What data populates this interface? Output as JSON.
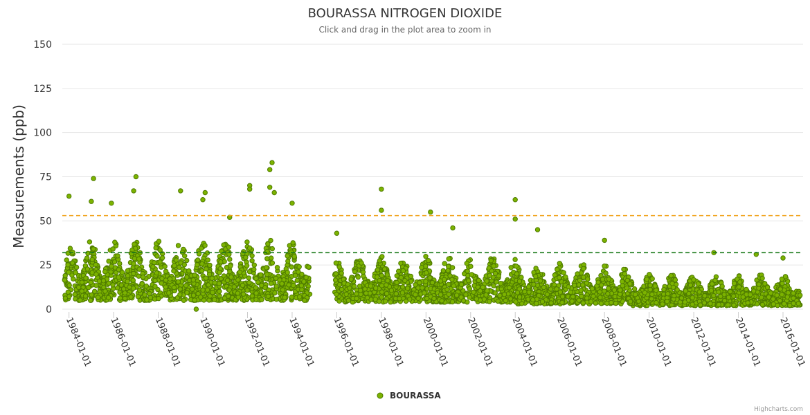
{
  "chart_data": {
    "type": "scatter",
    "title": "BOURASSA NITROGEN DIOXIDE",
    "subtitle": "Click and drag in the plot area to zoom in",
    "ylabel": "Measurements (ppb)",
    "xlabel": "",
    "ylim": [
      0,
      150
    ],
    "yticks": [
      0,
      25,
      50,
      75,
      100,
      125,
      150
    ],
    "xlim": [
      1983.7,
      2016.9
    ],
    "xticks": [
      {
        "value": 1984,
        "label": "1984-01-01"
      },
      {
        "value": 1986,
        "label": "1986-01-01"
      },
      {
        "value": 1988,
        "label": "1988-01-01"
      },
      {
        "value": 1990,
        "label": "1990-01-01"
      },
      {
        "value": 1992,
        "label": "1992-01-01"
      },
      {
        "value": 1994,
        "label": "1994-01-01"
      },
      {
        "value": 1996,
        "label": "1996-01-01"
      },
      {
        "value": 1998,
        "label": "1998-01-01"
      },
      {
        "value": 2000,
        "label": "2000-01-01"
      },
      {
        "value": 2002,
        "label": "2002-01-01"
      },
      {
        "value": 2004,
        "label": "2004-01-01"
      },
      {
        "value": 2006,
        "label": "2006-01-01"
      },
      {
        "value": 2008,
        "label": "2008-01-01"
      },
      {
        "value": 2010,
        "label": "2010-01-01"
      },
      {
        "value": 2012,
        "label": "2012-01-01"
      },
      {
        "value": 2014,
        "label": "2014-01-01"
      },
      {
        "value": 2016,
        "label": "2016-01-01"
      }
    ],
    "reference_lines": [
      {
        "value": 53,
        "color": "#f0a31c",
        "style": "dashed"
      },
      {
        "value": 32,
        "color": "#1a7a1a",
        "style": "dashed"
      }
    ],
    "legend": {
      "position": "bottom-center"
    },
    "series": [
      {
        "name": "BOURASSA",
        "color": "#7cb300",
        "data_gap": [
          1994.8,
          1995.9
        ],
        "typical_range_by_period": [
          {
            "x": [
              1983.8,
              1994.8
            ],
            "low": 5,
            "high": 40
          },
          {
            "x": [
              1995.9,
              2004.0
            ],
            "low": 4,
            "high": 30
          },
          {
            "x": [
              2004.0,
              2009.0
            ],
            "low": 3,
            "high": 26
          },
          {
            "x": [
              2009.0,
              2016.8
            ],
            "low": 2,
            "high": 20
          }
        ],
        "annotated_points": [
          {
            "x": 1984.0,
            "y": 64
          },
          {
            "x": 1985.1,
            "y": 74
          },
          {
            "x": 1985.0,
            "y": 61
          },
          {
            "x": 1985.9,
            "y": 60
          },
          {
            "x": 1987.0,
            "y": 75
          },
          {
            "x": 1986.9,
            "y": 67
          },
          {
            "x": 1989.0,
            "y": 67
          },
          {
            "x": 1990.1,
            "y": 66
          },
          {
            "x": 1990.0,
            "y": 62
          },
          {
            "x": 1991.2,
            "y": 52
          },
          {
            "x": 1992.1,
            "y": 70
          },
          {
            "x": 1992.1,
            "y": 68
          },
          {
            "x": 1993.1,
            "y": 83
          },
          {
            "x": 1993.0,
            "y": 79
          },
          {
            "x": 1993.0,
            "y": 69
          },
          {
            "x": 1993.2,
            "y": 66
          },
          {
            "x": 1994.0,
            "y": 60
          },
          {
            "x": 1998.0,
            "y": 68
          },
          {
            "x": 1998.0,
            "y": 56
          },
          {
            "x": 2000.2,
            "y": 55
          },
          {
            "x": 2004.0,
            "y": 62
          },
          {
            "x": 2004.0,
            "y": 51
          },
          {
            "x": 2005.0,
            "y": 45
          },
          {
            "x": 2008.0,
            "y": 39
          },
          {
            "x": 2012.9,
            "y": 32
          },
          {
            "x": 2014.8,
            "y": 31
          },
          {
            "x": 2016.0,
            "y": 29
          },
          {
            "x": 1989.7,
            "y": 0
          },
          {
            "x": 1996.0,
            "y": 43
          },
          {
            "x": 2001.2,
            "y": 46
          }
        ]
      }
    ]
  },
  "credits": "Highcharts.com"
}
